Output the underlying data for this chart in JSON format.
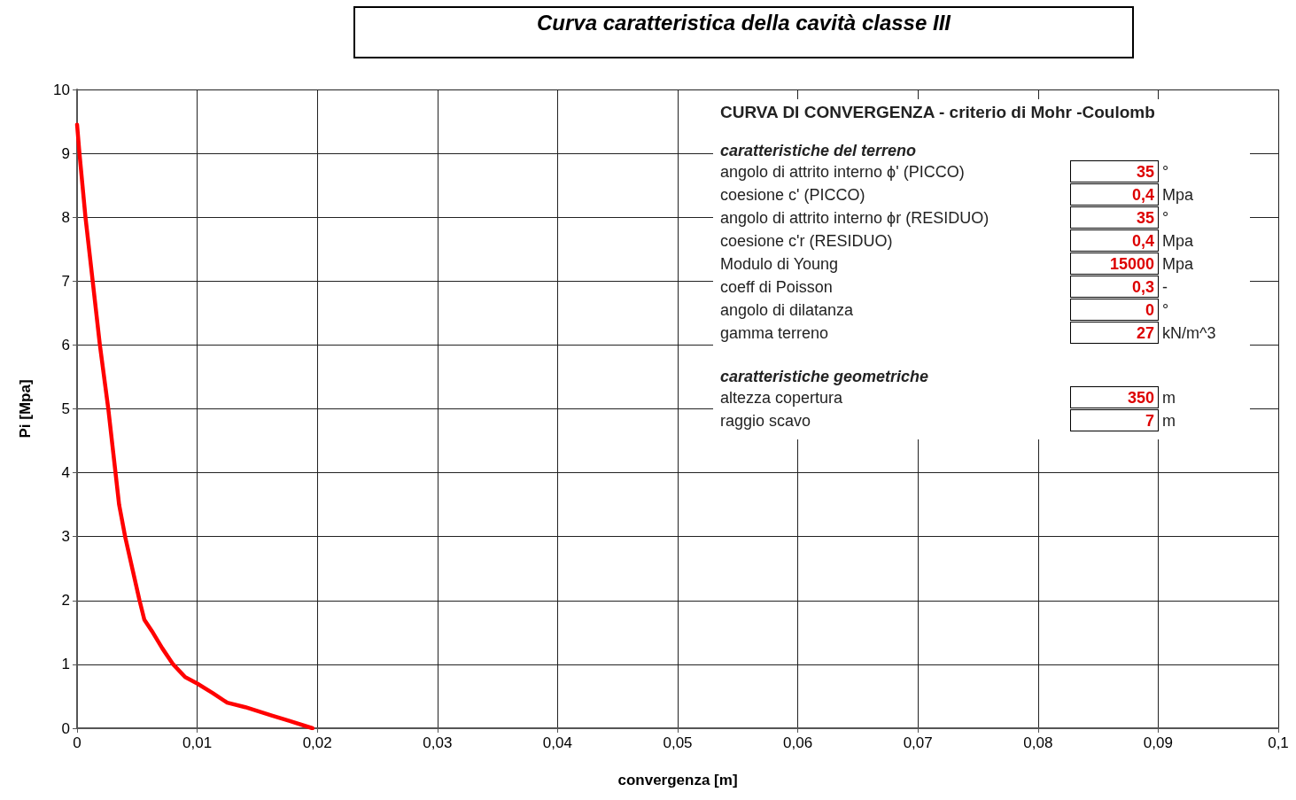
{
  "chart_data": {
    "type": "line",
    "title": "Curva caratteristica della cavità classe III",
    "xlabel": "convergenza [m]",
    "ylabel": "Pi [Mpa]",
    "x": [
      0,
      0.0002,
      0.0007,
      0.0013,
      0.0019,
      0.0026,
      0.0032,
      0.0035,
      0.004,
      0.0046,
      0.0052,
      0.0056,
      0.0063,
      0.0071,
      0.008,
      0.009,
      0.01,
      0.0113,
      0.0125,
      0.014,
      0.0162,
      0.0176,
      0.0196
    ],
    "series": [
      {
        "color": "#ff0000",
        "values": [
          9.45,
          9,
          8,
          7,
          6,
          5,
          4,
          3.5,
          3,
          2.5,
          2,
          1.7,
          1.5,
          1.25,
          1,
          0.8,
          0.7,
          0.55,
          0.4,
          0.33,
          0.2,
          0.12,
          0
        ]
      }
    ],
    "xlim": [
      0,
      0.1
    ],
    "xticks": [
      0,
      {
        "value": 0.01,
        "label": "0,01"
      },
      {
        "value": 0.02,
        "label": "0,02"
      },
      {
        "value": 0.03,
        "label": "0,03"
      },
      {
        "value": 0.04,
        "label": "0,04"
      },
      {
        "value": 0.05,
        "label": "0,05"
      },
      {
        "value": 0.06,
        "label": "0,06"
      },
      {
        "value": 0.07,
        "label": "0,07"
      },
      {
        "value": 0.08,
        "label": "0,08"
      },
      {
        "value": 0.09,
        "label": "0,09"
      },
      {
        "value": 0.1,
        "label": "0,1"
      }
    ],
    "ylim": [
      0,
      10
    ],
    "yticks": [
      0,
      1,
      2,
      3,
      4,
      5,
      6,
      7,
      8,
      9,
      10
    ],
    "grid": true,
    "marker": "none",
    "line_style": "solid",
    "annotations": [
      "CURVA DI CONVERGENZA - criterio di Mohr -Coulomb",
      "caratteristiche del terreno",
      "angolo di attrito interno ϕ' (PICCO)",
      "35",
      "°",
      "coesione c' (PICCO)",
      "0,4",
      "Mpa",
      "angolo di attrito interno ϕr (RESIDUO)",
      "35",
      "°",
      "coesione c'r (RESIDUO)",
      "0,4",
      "Mpa",
      "Modulo di Young",
      "15000",
      "Mpa",
      "coeff di Poisson",
      "0,3",
      "-",
      "angolo di dilatanza",
      "0",
      "°",
      "gamma terreno",
      "27",
      "kN/m^3",
      "caratteristiche geometriche",
      "altezza copertura",
      "350",
      "m",
      "raggio scavo",
      "7",
      "m"
    ]
  }
}
